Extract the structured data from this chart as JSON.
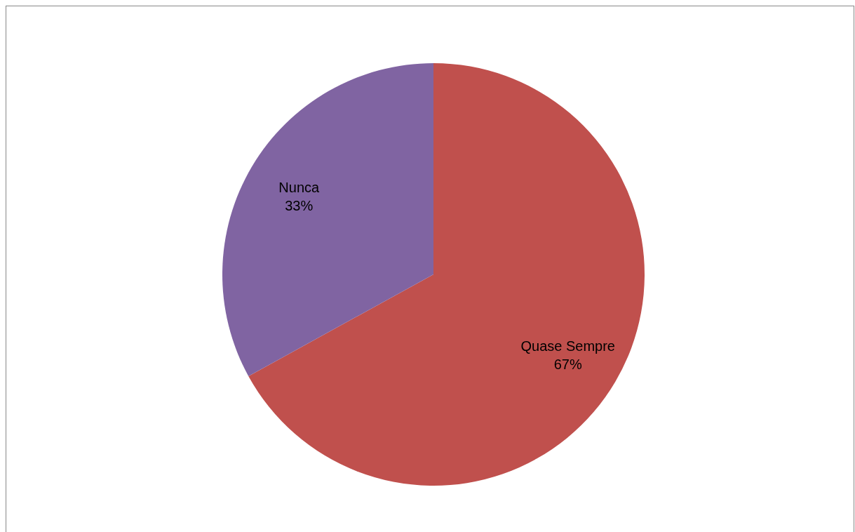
{
  "chart_data": {
    "type": "pie",
    "categories": [
      "Quase Sempre",
      "Nunca"
    ],
    "values": [
      67,
      33
    ],
    "colors": [
      "#c0504d",
      "#8064a2"
    ],
    "value_labels": [
      "67%",
      "33%"
    ],
    "legend": false
  }
}
